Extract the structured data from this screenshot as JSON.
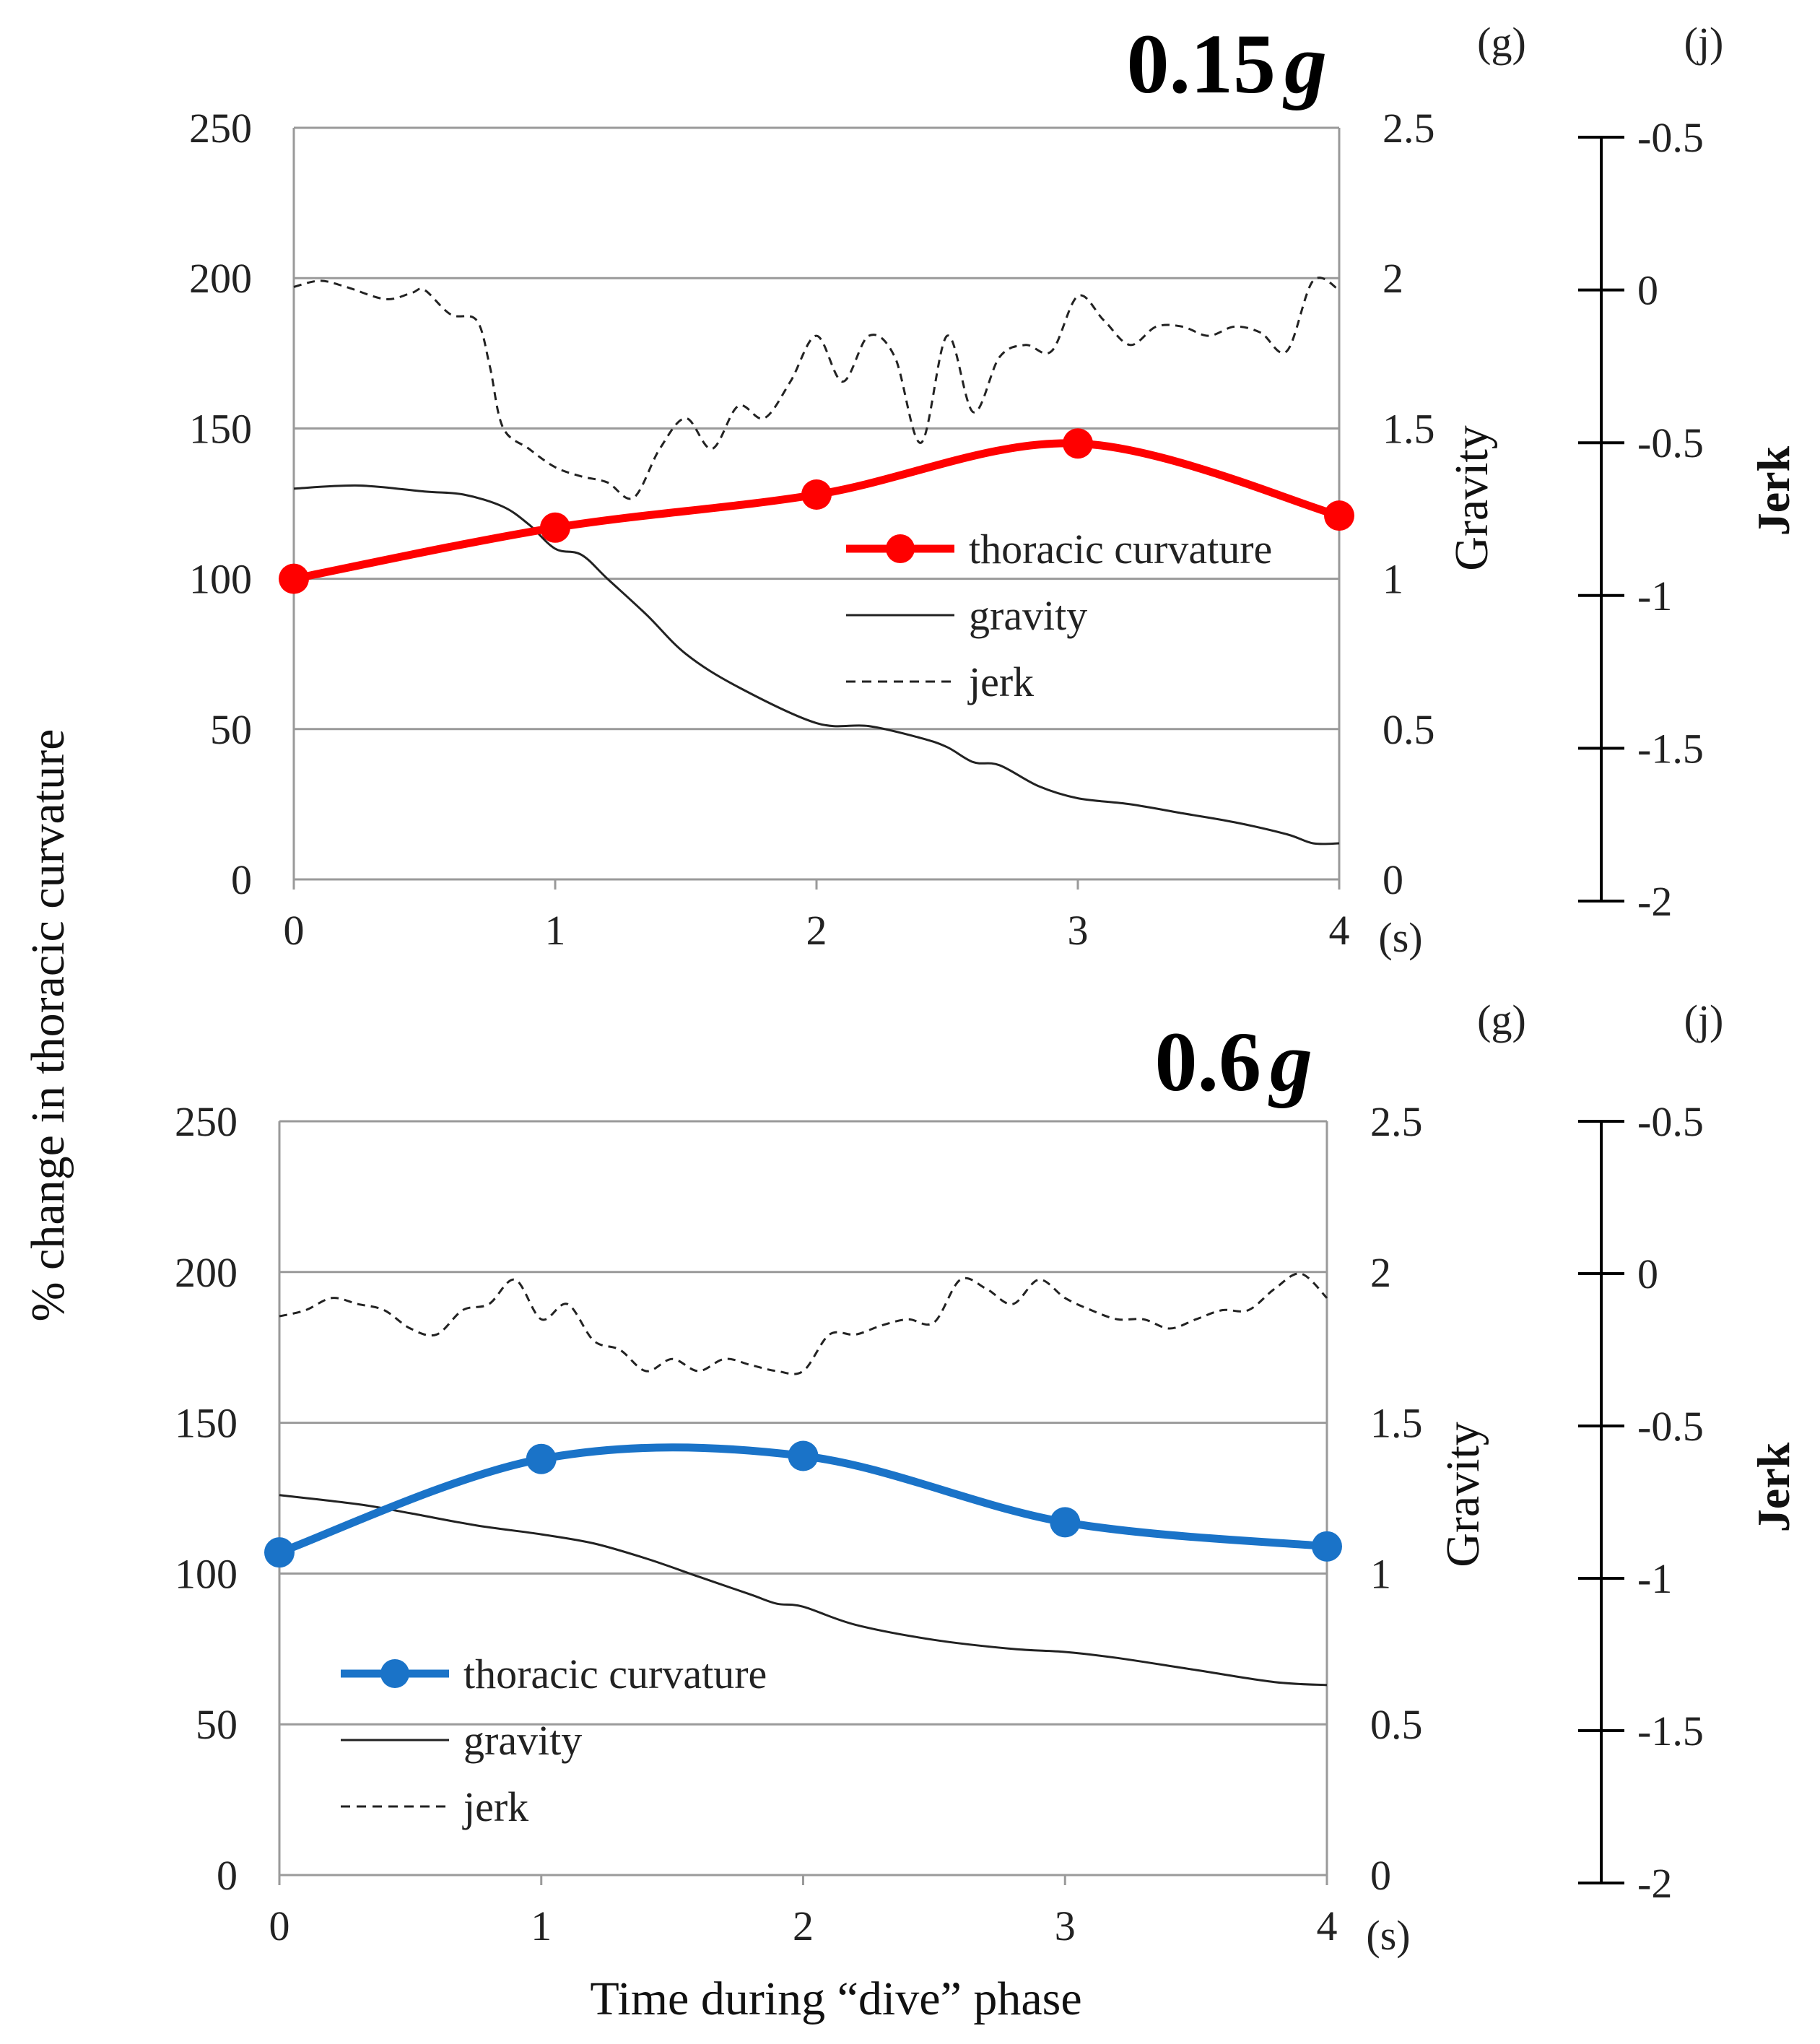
{
  "y_axis_label": "% change in thoracic curvature",
  "x_axis_label": "Time during “dive” phase",
  "chart_data": [
    {
      "type": "line",
      "title": "0.15",
      "title_g": "g",
      "x_ticks": [
        "0",
        "1",
        "2",
        "3",
        "4"
      ],
      "x_unit": "(s)",
      "xlim": [
        0,
        4
      ],
      "left_ylim": [
        0,
        250
      ],
      "left_ticks": [
        "0",
        "50",
        "100",
        "150",
        "200",
        "250"
      ],
      "right_ylim": [
        0,
        2.5
      ],
      "right_ticks": [
        "0",
        "0.5",
        "1",
        "1.5",
        "2",
        "2.5"
      ],
      "right_unit": "(g)",
      "right_label": "Gravity",
      "jerk_unit": "(j)",
      "jerk_label": "Jerk",
      "jerk_ticks": [
        "-0.5",
        "0",
        "-0.5",
        "-1",
        "-1.5",
        "-2"
      ],
      "legend": {
        "curv": "thoracic curvature",
        "grav": "gravity",
        "jerk": "jerk"
      },
      "series_color": "#ff0000",
      "thoracic_curvature": {
        "x": [
          0,
          1,
          2,
          3,
          4
        ],
        "y": [
          100,
          117,
          128,
          145,
          121
        ]
      },
      "gravity": {
        "x": [
          0,
          0.25,
          0.5,
          0.65,
          0.8,
          0.9,
          1.0,
          1.1,
          1.2,
          1.35,
          1.5,
          1.7,
          2.0,
          2.2,
          2.4,
          2.5,
          2.6,
          2.7,
          2.85,
          3.0,
          3.2,
          3.4,
          3.6,
          3.8,
          3.9,
          4.0
        ],
        "y": [
          1.3,
          1.31,
          1.29,
          1.28,
          1.24,
          1.18,
          1.1,
          1.08,
          1.0,
          0.88,
          0.75,
          0.64,
          0.52,
          0.51,
          0.47,
          0.44,
          0.39,
          0.38,
          0.31,
          0.27,
          0.25,
          0.22,
          0.19,
          0.15,
          0.12,
          0.12
        ]
      },
      "jerk": {
        "x": [
          0,
          0.1,
          0.2,
          0.35,
          0.45,
          0.5,
          0.6,
          0.7,
          0.75,
          0.8,
          0.9,
          1.0,
          1.1,
          1.2,
          1.3,
          1.4,
          1.5,
          1.6,
          1.7,
          1.8,
          1.9,
          2.0,
          2.1,
          2.2,
          2.3,
          2.4,
          2.5,
          2.6,
          2.7,
          2.8,
          2.9,
          3.0,
          3.1,
          3.2,
          3.3,
          3.4,
          3.5,
          3.6,
          3.7,
          3.8,
          3.9,
          4.0
        ],
        "y": [
          0.01,
          0.03,
          0.01,
          -0.03,
          -0.01,
          0.0,
          -0.08,
          -0.1,
          -0.25,
          -0.45,
          -0.52,
          -0.58,
          -0.61,
          -0.63,
          -0.68,
          -0.52,
          -0.42,
          -0.52,
          -0.38,
          -0.42,
          -0.3,
          -0.15,
          -0.3,
          -0.15,
          -0.22,
          -0.5,
          -0.15,
          -0.4,
          -0.22,
          -0.18,
          -0.2,
          -0.02,
          -0.1,
          -0.18,
          -0.12,
          -0.12,
          -0.15,
          -0.12,
          -0.14,
          -0.2,
          0.03,
          0.0
        ]
      }
    },
    {
      "type": "line",
      "title": "0.6",
      "title_g": "g",
      "x_ticks": [
        "0",
        "1",
        "2",
        "3",
        "4"
      ],
      "x_unit": "(s)",
      "xlim": [
        0,
        4
      ],
      "left_ylim": [
        0,
        250
      ],
      "left_ticks": [
        "0",
        "50",
        "100",
        "150",
        "200",
        "250"
      ],
      "right_ylim": [
        0,
        2.5
      ],
      "right_ticks": [
        "0",
        "0.5",
        "1",
        "1.5",
        "2",
        "2.5"
      ],
      "right_unit": "(g)",
      "right_label": "Gravity",
      "jerk_unit": "(j)",
      "jerk_label": "Jerk",
      "jerk_ticks": [
        "-0.5",
        "0",
        "-0.5",
        "-1",
        "-1.5",
        "-2"
      ],
      "legend": {
        "curv": "thoracic curvature",
        "grav": "gravity",
        "jerk": "jerk"
      },
      "series_color": "#1a73c8",
      "thoracic_curvature": {
        "x": [
          0,
          1,
          2,
          3,
          4
        ],
        "y": [
          107,
          138,
          139,
          117,
          109
        ]
      },
      "gravity": {
        "x": [
          0,
          0.3,
          0.5,
          0.75,
          1.0,
          1.2,
          1.4,
          1.6,
          1.8,
          1.9,
          2.0,
          2.2,
          2.5,
          2.8,
          3.0,
          3.2,
          3.5,
          3.8,
          4.0
        ],
        "y": [
          1.26,
          1.23,
          1.2,
          1.16,
          1.13,
          1.1,
          1.05,
          0.99,
          0.93,
          0.9,
          0.89,
          0.83,
          0.78,
          0.75,
          0.74,
          0.72,
          0.68,
          0.64,
          0.63
        ]
      },
      "jerk": {
        "x": [
          0,
          0.1,
          0.2,
          0.3,
          0.4,
          0.5,
          0.6,
          0.7,
          0.8,
          0.9,
          1.0,
          1.1,
          1.2,
          1.3,
          1.4,
          1.5,
          1.6,
          1.7,
          1.8,
          1.9,
          2.0,
          2.1,
          2.2,
          2.3,
          2.4,
          2.5,
          2.6,
          2.7,
          2.8,
          2.9,
          3.0,
          3.1,
          3.2,
          3.3,
          3.4,
          3.5,
          3.6,
          3.7,
          3.8,
          3.9,
          4.0
        ],
        "y": [
          -0.14,
          -0.12,
          -0.08,
          -0.1,
          -0.12,
          -0.18,
          -0.2,
          -0.12,
          -0.1,
          -0.02,
          -0.15,
          -0.1,
          -0.22,
          -0.25,
          -0.32,
          -0.28,
          -0.32,
          -0.28,
          -0.3,
          -0.32,
          -0.32,
          -0.2,
          -0.2,
          -0.17,
          -0.15,
          -0.16,
          -0.02,
          -0.05,
          -0.1,
          -0.02,
          -0.08,
          -0.12,
          -0.15,
          -0.15,
          -0.18,
          -0.15,
          -0.12,
          -0.12,
          -0.05,
          0.0,
          -0.08
        ]
      }
    }
  ]
}
